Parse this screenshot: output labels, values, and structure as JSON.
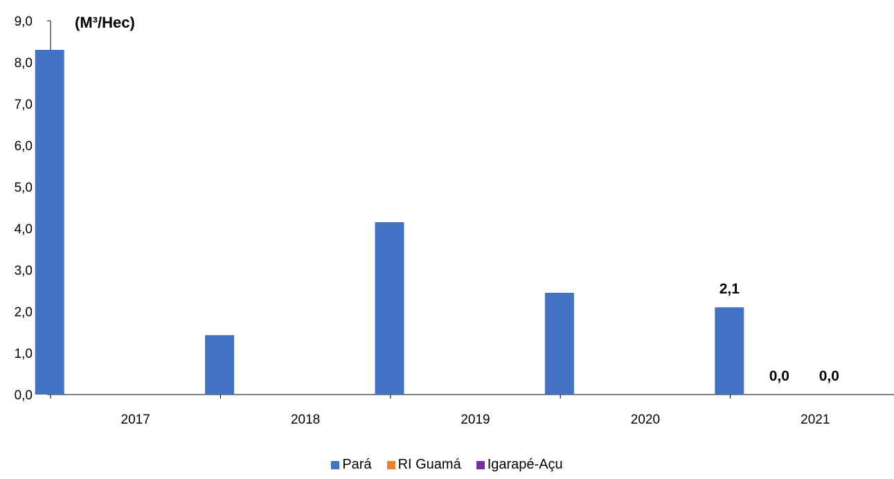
{
  "chart_data": {
    "type": "bar",
    "unit_label": "(M³/Hec)",
    "categories": [
      "2017",
      "2018",
      "2019",
      "2020",
      "2021"
    ],
    "ylim": [
      0,
      9
    ],
    "y_ticks": [
      "0,0",
      "1,0",
      "2,0",
      "3,0",
      "4,0",
      "5,0",
      "6,0",
      "7,0",
      "8,0",
      "9,0"
    ],
    "grid": false,
    "legend_position": "bottom",
    "series": [
      {
        "name": "Pará",
        "color": "#4472C4",
        "values": [
          8.3,
          1.43,
          4.15,
          2.45,
          2.1
        ]
      },
      {
        "name": "RI Guamá",
        "color": "#ED7D31",
        "values": [
          null,
          null,
          null,
          null,
          0.0
        ]
      },
      {
        "name": "Igarapé-Açu",
        "color": "#7030A0",
        "values": [
          null,
          null,
          null,
          null,
          0.0
        ]
      }
    ],
    "data_labels": [
      {
        "series": 0,
        "category": 4,
        "text": "2,1"
      },
      {
        "series": 1,
        "category": 4,
        "text": "0,0"
      },
      {
        "series": 2,
        "category": 4,
        "text": "0,0"
      }
    ]
  }
}
